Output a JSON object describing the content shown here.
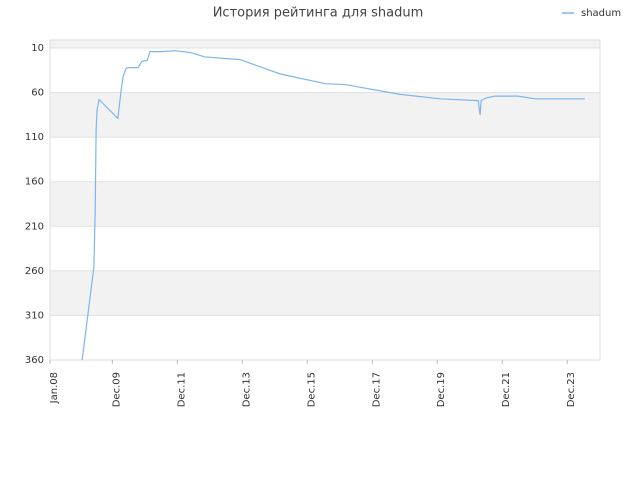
{
  "chart_data": {
    "type": "line",
    "title": "История рейтинга для shadum",
    "legend": "top-right",
    "series": [
      {
        "name": "shadum",
        "color": "#7eb6ec",
        "x": [
          2008.99,
          2009.35,
          2009.39,
          2009.42,
          2009.45,
          2009.51,
          2009.57,
          2010.09,
          2010.19,
          2010.25,
          2010.34,
          2010.4,
          2010.71,
          2010.83,
          2010.99,
          2011.08,
          2011.39,
          2011.85,
          2012.31,
          2012.77,
          2013.85,
          2015.08,
          2016.47,
          2017.08,
          2018.78,
          2020.01,
          2021.18,
          2021.24,
          2021.27,
          2021.42,
          2021.7,
          2022.41,
          2022.93,
          2023.86,
          2024.47
        ],
        "values": [
          360,
          256,
          195,
          101,
          79,
          68,
          70,
          89,
          57,
          42,
          33,
          32,
          32,
          25,
          24,
          14,
          14,
          13,
          15,
          20,
          23,
          39,
          50,
          51,
          62,
          67,
          69,
          85,
          69,
          66,
          64,
          64,
          67,
          67,
          67
        ]
      }
    ],
    "xlim": [
      2008.0,
      2024.93
    ],
    "xticks": [
      {
        "value": 2008.0,
        "label": "Jan.08"
      },
      {
        "value": 2009.92,
        "label": "Dec.09"
      },
      {
        "value": 2011.92,
        "label": "Dec.11"
      },
      {
        "value": 2013.92,
        "label": "Dec.13"
      },
      {
        "value": 2015.92,
        "label": "Dec.15"
      },
      {
        "value": 2017.92,
        "label": "Dec.17"
      },
      {
        "value": 2019.92,
        "label": "Dec.19"
      },
      {
        "value": 2021.92,
        "label": "Dec.21"
      },
      {
        "value": 2023.92,
        "label": "Dec.23"
      }
    ],
    "ylim": [
      1,
      360
    ],
    "y_inverted": true,
    "yticks": [
      10,
      60,
      110,
      160,
      210,
      260,
      310,
      360
    ],
    "grid": true
  }
}
